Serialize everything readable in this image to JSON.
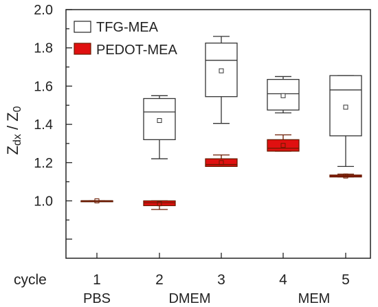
{
  "chart_data": {
    "type": "box",
    "ylabel": "Zdx / Z0",
    "ylabel_main": "Z",
    "ylabel_sub": "dx",
    "ylabel_denom_main": "Z",
    "ylabel_denom_sub": "0",
    "ylabel_sep": " / ",
    "ylim": [
      0.7,
      2.0
    ],
    "yticks": [
      "2.0",
      "1.8",
      "1.6",
      "1.4",
      "1.2",
      "1.0"
    ],
    "ytick_values": [
      2.0,
      1.8,
      1.6,
      1.4,
      1.2,
      1.0
    ],
    "x_row_label": "cycle",
    "categories": [
      "1",
      "2",
      "3",
      "4",
      "5"
    ],
    "media_labels": [
      {
        "label": "PBS",
        "under_category": "1"
      },
      {
        "label": "DMEM",
        "under_category": "2-3"
      },
      {
        "label": "MEM",
        "under_category": "4-5"
      }
    ],
    "legend": {
      "position": "top-left"
    },
    "series": [
      {
        "name": "TFG-MEA",
        "fill": "#ffffff",
        "stroke": "#333333",
        "boxes": [
          {
            "category": "1",
            "min": 1.0,
            "q1": 1.0,
            "median": 1.0,
            "q3": 1.0,
            "max": 1.0,
            "mean": 1.0
          },
          {
            "category": "2",
            "min": 1.22,
            "q1": 1.32,
            "median": 1.465,
            "q3": 1.535,
            "max": 1.55,
            "mean": 1.42
          },
          {
            "category": "3",
            "min": 1.405,
            "q1": 1.545,
            "median": 1.735,
            "q3": 1.825,
            "max": 1.86,
            "mean": 1.68
          },
          {
            "category": "4",
            "min": 1.46,
            "q1": 1.475,
            "median": 1.56,
            "q3": 1.635,
            "max": 1.65,
            "mean": 1.55
          },
          {
            "category": "5",
            "min": 1.18,
            "q1": 1.34,
            "median": 1.58,
            "q3": 1.655,
            "max": 1.655,
            "mean": 1.49
          }
        ]
      },
      {
        "name": "PEDOT-MEA",
        "fill": "#e01010",
        "stroke": "#6b1a00",
        "boxes": [
          {
            "category": "1",
            "min": 1.0,
            "q1": 1.0,
            "median": 1.0,
            "q3": 1.0,
            "max": 1.0,
            "mean": 1.0
          },
          {
            "category": "2",
            "min": 0.955,
            "q1": 0.975,
            "median": 0.99,
            "q3": 1.0,
            "max": 1.0,
            "mean": 0.985
          },
          {
            "category": "3",
            "min": 1.18,
            "q1": 1.18,
            "median": 1.19,
            "q3": 1.22,
            "max": 1.24,
            "mean": 1.2
          },
          {
            "category": "4",
            "min": 1.26,
            "q1": 1.26,
            "median": 1.275,
            "q3": 1.32,
            "max": 1.345,
            "mean": 1.29
          },
          {
            "category": "5",
            "min": 1.125,
            "q1": 1.125,
            "median": 1.13,
            "q3": 1.135,
            "max": 1.14,
            "mean": 1.13
          }
        ]
      }
    ]
  }
}
